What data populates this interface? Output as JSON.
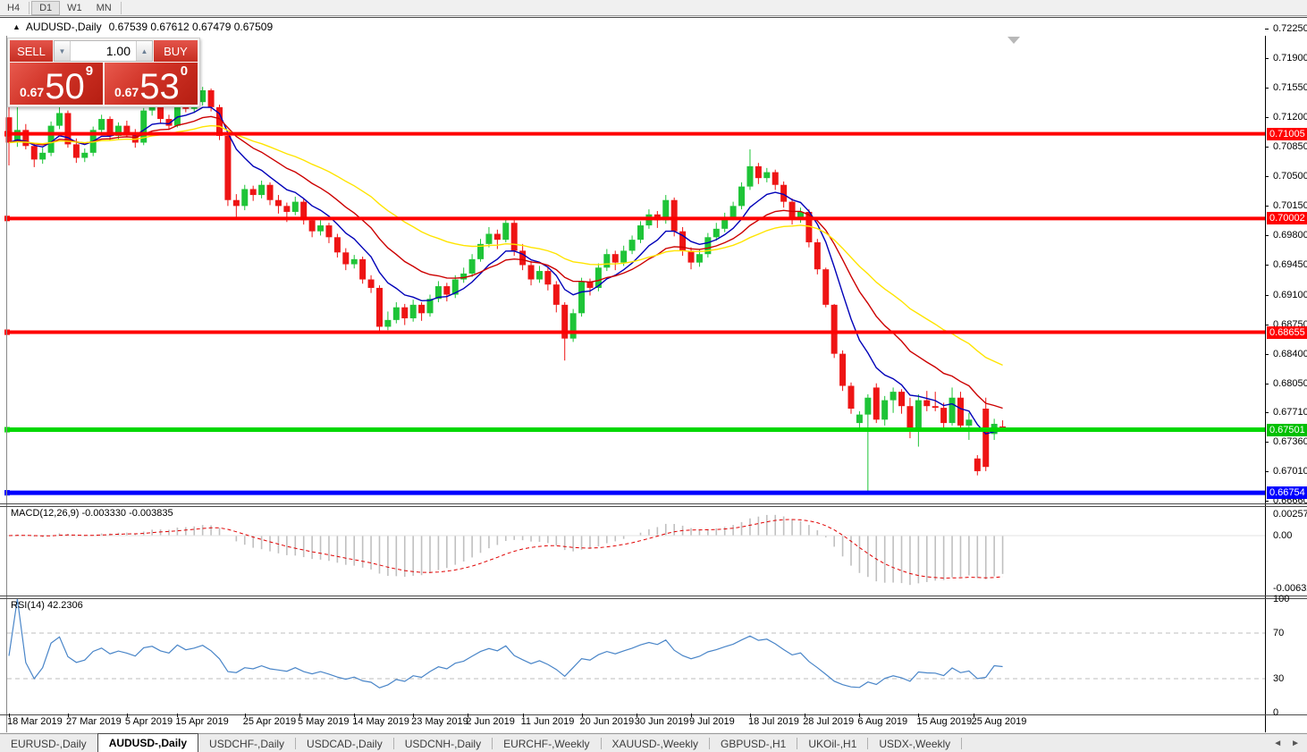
{
  "toolbar": {
    "timeframes": [
      {
        "label": "H4",
        "active": false
      },
      {
        "label": "D1",
        "active": true
      },
      {
        "label": "W1",
        "active": false
      },
      {
        "label": "MN",
        "active": false
      }
    ]
  },
  "chart": {
    "collapse_arrow": "▲",
    "symbol_title": "AUDUSD-,Daily",
    "ohlc_text": "0.67539 0.67612 0.67479 0.67509"
  },
  "trade_panel": {
    "sell_label": "SELL",
    "buy_label": "BUY",
    "volume": "1.00",
    "spin_down": "▼",
    "spin_up": "▲",
    "sell_price_prefix": "0.67",
    "sell_price_big": "50",
    "sell_price_sup": "9",
    "buy_price_prefix": "0.67",
    "buy_price_big": "53",
    "buy_price_sup": "0"
  },
  "price_axis": {
    "labels": [
      "0.72250",
      "0.71900",
      "0.71550",
      "0.71200",
      "0.70850",
      "0.70500",
      "0.70150",
      "0.69800",
      "0.69450",
      "0.69100",
      "0.68750",
      "0.68400",
      "0.68050",
      "0.67710",
      "0.67360",
      "0.67010",
      "0.66660"
    ],
    "tags": [
      {
        "text": "0.71005",
        "bg": "#ff0000",
        "fg": "#ffffff"
      },
      {
        "text": "0.70002",
        "bg": "#ff0000",
        "fg": "#ffffff"
      },
      {
        "text": "0.68655",
        "bg": "#ff0000",
        "fg": "#ffffff"
      },
      {
        "text": "0.67501",
        "bg": "#00c000",
        "fg": "#ffffff"
      },
      {
        "text": "0.66754",
        "bg": "#0000ff",
        "fg": "#ffffff"
      }
    ]
  },
  "chart_data": {
    "type": "candlestick",
    "symbol": "AUDUSD",
    "timeframe": "Daily",
    "title": "AUDUSD-,Daily 0.67539 0.67612 0.67479 0.67509",
    "ylim": [
      0.6666,
      0.7225
    ],
    "grid": false,
    "up_color": "#1ec437",
    "down_color": "#ee1414",
    "price_scale": 100000,
    "candles": [
      [
        71200,
        71380,
        70630,
        70900
      ],
      [
        70900,
        71330,
        70850,
        71050
      ],
      [
        71050,
        71120,
        70820,
        70860
      ],
      [
        70860,
        70900,
        70610,
        70700
      ],
      [
        70700,
        70840,
        70650,
        70780
      ],
      [
        70780,
        71150,
        70740,
        71100
      ],
      [
        71100,
        71330,
        71060,
        71250
      ],
      [
        71250,
        71280,
        70840,
        70880
      ],
      [
        70880,
        70950,
        70660,
        70720
      ],
      [
        70720,
        70830,
        70670,
        70780
      ],
      [
        70780,
        71090,
        70740,
        71050
      ],
      [
        71050,
        71230,
        71000,
        71180
      ],
      [
        71180,
        71210,
        70930,
        70980
      ],
      [
        70980,
        71140,
        70940,
        71100
      ],
      [
        71100,
        71160,
        70970,
        71020
      ],
      [
        71020,
        71060,
        70840,
        70900
      ],
      [
        70900,
        71310,
        70870,
        71280
      ],
      [
        71280,
        71400,
        71220,
        71350
      ],
      [
        71350,
        71380,
        71130,
        71180
      ],
      [
        71180,
        71230,
        71050,
        71100
      ],
      [
        71100,
        71500,
        71080,
        71480
      ],
      [
        71480,
        71510,
        71260,
        71300
      ],
      [
        71300,
        71410,
        71250,
        71380
      ],
      [
        71380,
        71560,
        71340,
        71520
      ],
      [
        71520,
        71540,
        71270,
        71320
      ],
      [
        71320,
        71350,
        70930,
        70980
      ],
      [
        70980,
        71010,
        70150,
        70220
      ],
      [
        70220,
        70290,
        70020,
        70150
      ],
      [
        70150,
        70400,
        70100,
        70350
      ],
      [
        70350,
        70390,
        70210,
        70280
      ],
      [
        70280,
        70450,
        70240,
        70400
      ],
      [
        70400,
        70430,
        70160,
        70220
      ],
      [
        70220,
        70280,
        70060,
        70150
      ],
      [
        70150,
        70190,
        69960,
        70080
      ],
      [
        70080,
        70260,
        70040,
        70200
      ],
      [
        70200,
        70230,
        69930,
        69980
      ],
      [
        69980,
        70020,
        69780,
        69850
      ],
      [
        69850,
        69980,
        69800,
        69920
      ],
      [
        69920,
        69950,
        69710,
        69780
      ],
      [
        69780,
        69820,
        69540,
        69600
      ],
      [
        69600,
        69650,
        69390,
        69460
      ],
      [
        69460,
        69570,
        69410,
        69520
      ],
      [
        69520,
        69550,
        69230,
        69280
      ],
      [
        69280,
        69330,
        69120,
        69180
      ],
      [
        69180,
        69210,
        68650,
        68720
      ],
      [
        68720,
        68900,
        68680,
        68800
      ],
      [
        68800,
        69010,
        68760,
        68950
      ],
      [
        68950,
        68990,
        68740,
        68820
      ],
      [
        68820,
        69040,
        68780,
        68980
      ],
      [
        68980,
        69010,
        68790,
        68880
      ],
      [
        68880,
        69100,
        68840,
        69050
      ],
      [
        69050,
        69260,
        69010,
        69200
      ],
      [
        69200,
        69240,
        69020,
        69100
      ],
      [
        69100,
        69330,
        69060,
        69280
      ],
      [
        69280,
        69420,
        69240,
        69350
      ],
      [
        69350,
        69580,
        69310,
        69520
      ],
      [
        69520,
        69760,
        69490,
        69700
      ],
      [
        69700,
        69900,
        69660,
        69820
      ],
      [
        69820,
        69870,
        69640,
        69750
      ],
      [
        69750,
        70000,
        69720,
        69950
      ],
      [
        69950,
        69980,
        69560,
        69620
      ],
      [
        69620,
        69700,
        69390,
        69450
      ],
      [
        69450,
        69500,
        69210,
        69280
      ],
      [
        69280,
        69440,
        69240,
        69380
      ],
      [
        69380,
        69420,
        69150,
        69220
      ],
      [
        69220,
        69260,
        68890,
        68980
      ],
      [
        68980,
        69010,
        68320,
        68580
      ],
      [
        68580,
        68930,
        68540,
        68880
      ],
      [
        68880,
        69300,
        68840,
        69250
      ],
      [
        69250,
        69290,
        69090,
        69180
      ],
      [
        69180,
        69470,
        69140,
        69420
      ],
      [
        69420,
        69640,
        69380,
        69580
      ],
      [
        69580,
        69620,
        69390,
        69480
      ],
      [
        69480,
        69680,
        69440,
        69620
      ],
      [
        69620,
        69800,
        69580,
        69750
      ],
      [
        69750,
        69970,
        69710,
        69920
      ],
      [
        69920,
        70110,
        69880,
        70050
      ],
      [
        70050,
        70090,
        69890,
        69980
      ],
      [
        69980,
        70280,
        69940,
        70220
      ],
      [
        70220,
        70250,
        69790,
        69850
      ],
      [
        69850,
        69900,
        69560,
        69620
      ],
      [
        69620,
        69660,
        69400,
        69480
      ],
      [
        69480,
        69640,
        69430,
        69580
      ],
      [
        69580,
        69830,
        69540,
        69780
      ],
      [
        69780,
        69950,
        69740,
        69880
      ],
      [
        69880,
        70070,
        69840,
        70020
      ],
      [
        70020,
        70200,
        69980,
        70150
      ],
      [
        70150,
        70430,
        70110,
        70380
      ],
      [
        70380,
        70820,
        70340,
        70620
      ],
      [
        70620,
        70660,
        70410,
        70480
      ],
      [
        70480,
        70600,
        70430,
        70550
      ],
      [
        70550,
        70580,
        70340,
        70400
      ],
      [
        70400,
        70440,
        70130,
        70200
      ],
      [
        70200,
        70240,
        69930,
        70000
      ],
      [
        70000,
        70130,
        69950,
        70080
      ],
      [
        70080,
        70110,
        69660,
        69720
      ],
      [
        69720,
        69760,
        69340,
        69400
      ],
      [
        69400,
        69420,
        68950,
        68980
      ],
      [
        68980,
        68990,
        68350,
        68400
      ],
      [
        68400,
        68440,
        67960,
        68020
      ],
      [
        68020,
        68060,
        67690,
        67750
      ],
      [
        67580,
        67720,
        67480,
        67680
      ],
      [
        67680,
        67920,
        66754,
        67880
      ],
      [
        68000,
        68050,
        67580,
        67620
      ],
      [
        67620,
        67900,
        67550,
        67850
      ],
      [
        67850,
        68000,
        67700,
        67950
      ],
      [
        67950,
        67980,
        67690,
        67780
      ],
      [
        67780,
        67880,
        67400,
        67480
      ],
      [
        67480,
        67920,
        67300,
        67850
      ],
      [
        67850,
        67960,
        67720,
        67780
      ],
      [
        67780,
        67950,
        67720,
        67760
      ],
      [
        67760,
        67820,
        67520,
        67580
      ],
      [
        67580,
        68000,
        67550,
        67880
      ],
      [
        67880,
        67950,
        67480,
        67550
      ],
      [
        67550,
        67700,
        67380,
        67620
      ],
      [
        67160,
        67200,
        66960,
        67010
      ],
      [
        67750,
        67880,
        67010,
        67060
      ],
      [
        67450,
        67630,
        67380,
        67570
      ],
      [
        67539,
        67612,
        67479,
        67509
      ]
    ],
    "x_tick_labels": [
      {
        "label": "18 Mar 2019",
        "index": 0
      },
      {
        "label": "27 Mar 2019",
        "index": 7
      },
      {
        "label": "5 Apr 2019",
        "index": 14
      },
      {
        "label": "15 Apr 2019",
        "index": 20
      },
      {
        "label": "25 Apr 2019",
        "index": 28
      },
      {
        "label": "5 May 2019",
        "index": 34.5
      },
      {
        "label": "14 May 2019",
        "index": 41
      },
      {
        "label": "23 May 2019",
        "index": 48
      },
      {
        "label": "2 Jun 2019",
        "index": 54.5
      },
      {
        "label": "11 Jun 2019",
        "index": 61
      },
      {
        "label": "20 Jun 2019",
        "index": 68
      },
      {
        "label": "30 Jun 2019",
        "index": 74.5
      },
      {
        "label": "9 Jul 2019",
        "index": 81
      },
      {
        "label": "18 Jul 2019",
        "index": 88
      },
      {
        "label": "28 Jul 2019",
        "index": 94.5
      },
      {
        "label": "6 Aug 2019",
        "index": 101
      },
      {
        "label": "15 Aug 2019",
        "index": 108
      },
      {
        "label": "25 Aug 2019",
        "index": 114.5
      }
    ],
    "hlines": [
      {
        "price": 0.71005,
        "color": "#ff0000",
        "width": 4
      },
      {
        "price": 0.70002,
        "color": "#ff0000",
        "width": 4
      },
      {
        "price": 0.68655,
        "color": "#ff0000",
        "width": 4
      },
      {
        "price": 0.67501,
        "color": "#00d800",
        "width": 5
      },
      {
        "price": 0.66754,
        "color": "#0000ff",
        "width": 5
      }
    ],
    "moving_averages": [
      {
        "period": 8,
        "color": "#0000b8"
      },
      {
        "period": 17,
        "color": "#cc0000"
      },
      {
        "period": 34,
        "color": "#ffe400"
      }
    ],
    "macd": {
      "label": "MACD(12,26,9) -0.003330 -0.003835",
      "params": [
        12,
        26,
        9
      ],
      "main_value": "-0.003330",
      "signal_value": "-0.003835",
      "axis_labels": [
        "0.002574",
        "0.00",
        "-0.006326"
      ],
      "axis_values": [
        0.002574,
        0.0,
        -0.006326
      ],
      "hist_color": "#c0c0c0",
      "signal_color": "#e00000"
    },
    "rsi": {
      "label": "RSI(14) 42.2306",
      "period": 14,
      "value": 42.2306,
      "axis_labels": [
        "100",
        "70",
        "30",
        "0"
      ],
      "axis_values": [
        100,
        70,
        30,
        0
      ],
      "levels": [
        70,
        30
      ],
      "line_color": "#4985c8",
      "level_color": "#bdbdbd"
    }
  },
  "tabs": {
    "items": [
      {
        "label": "EURUSD-,Daily",
        "active": false
      },
      {
        "label": "AUDUSD-,Daily",
        "active": true
      },
      {
        "label": "USDCHF-,Daily",
        "active": false
      },
      {
        "label": "USDCAD-,Daily",
        "active": false
      },
      {
        "label": "USDCNH-,Daily",
        "active": false
      },
      {
        "label": "EURCHF-,Weekly",
        "active": false
      },
      {
        "label": "XAUUSD-,Weekly",
        "active": false
      },
      {
        "label": "GBPUSD-,H1",
        "active": false
      },
      {
        "label": "UKOil-,H1",
        "active": false
      },
      {
        "label": "USDX-,Weekly",
        "active": false
      }
    ],
    "scroll_left": "◄",
    "scroll_right": "►"
  }
}
